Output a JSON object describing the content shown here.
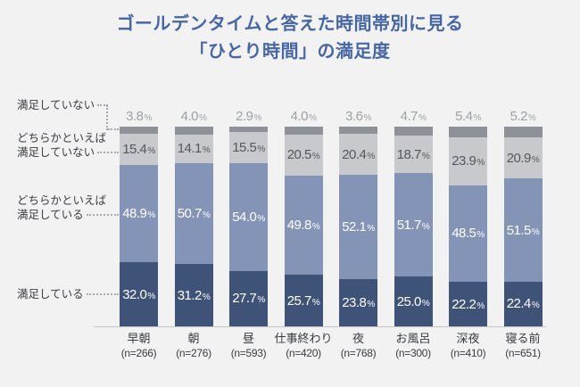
{
  "title": {
    "line1": "ゴールデンタイムと答えた時間帯別に見る",
    "line2": "「ひとり時間」の満足度"
  },
  "legend": [
    {
      "line1": "満足していない"
    },
    {
      "line1": "どちらかといえば",
      "line2": "満足していない"
    },
    {
      "line1": "どちらかといえば",
      "line2": "満足している"
    },
    {
      "line1": "満足している"
    }
  ],
  "colors": {
    "background": "#f2f2f2",
    "title_text": "#4766a4",
    "axis_line": "#c4c4c6",
    "label_text": "#3a3c41",
    "leader_dots": "#a6aab0"
  },
  "chart_data": {
    "type": "bar",
    "stacked": true,
    "value_unit": "%",
    "grid": false,
    "legend_position": "left",
    "ylim": [
      0,
      100
    ],
    "categories": [
      "早朝",
      "朝",
      "昼",
      "仕事終わり",
      "夜",
      "お風呂",
      "深夜",
      "寝る前"
    ],
    "sample_sizes": [
      "(n=266)",
      "(n=276)",
      "(n=593)",
      "(n=420)",
      "(n=768)",
      "(n=300)",
      "(n=410)",
      "(n=651)"
    ],
    "series": [
      {
        "name": "満足している",
        "color": "#3f5277",
        "text_color": "#ffffff",
        "label_position": "inside",
        "values": [
          32.0,
          31.2,
          27.7,
          25.7,
          23.8,
          25.0,
          22.2,
          22.4
        ]
      },
      {
        "name": "どちらかといえば満足している",
        "color": "#8494b7",
        "text_color": "#ffffff",
        "label_position": "inside",
        "values": [
          48.9,
          50.7,
          54.0,
          49.8,
          52.1,
          51.7,
          48.5,
          51.5
        ]
      },
      {
        "name": "どちらかといえば満足していない",
        "color": "#c8c9cc",
        "text_color": "#55575e",
        "label_position": "inside",
        "values": [
          15.4,
          14.1,
          15.5,
          20.5,
          20.4,
          18.7,
          23.9,
          20.9
        ]
      },
      {
        "name": "満足していない",
        "color": "#8e9298",
        "text_color": "#9da1a8",
        "label_position": "above",
        "values": [
          3.8,
          4.0,
          2.9,
          4.0,
          3.6,
          4.7,
          5.4,
          5.2
        ]
      }
    ]
  }
}
